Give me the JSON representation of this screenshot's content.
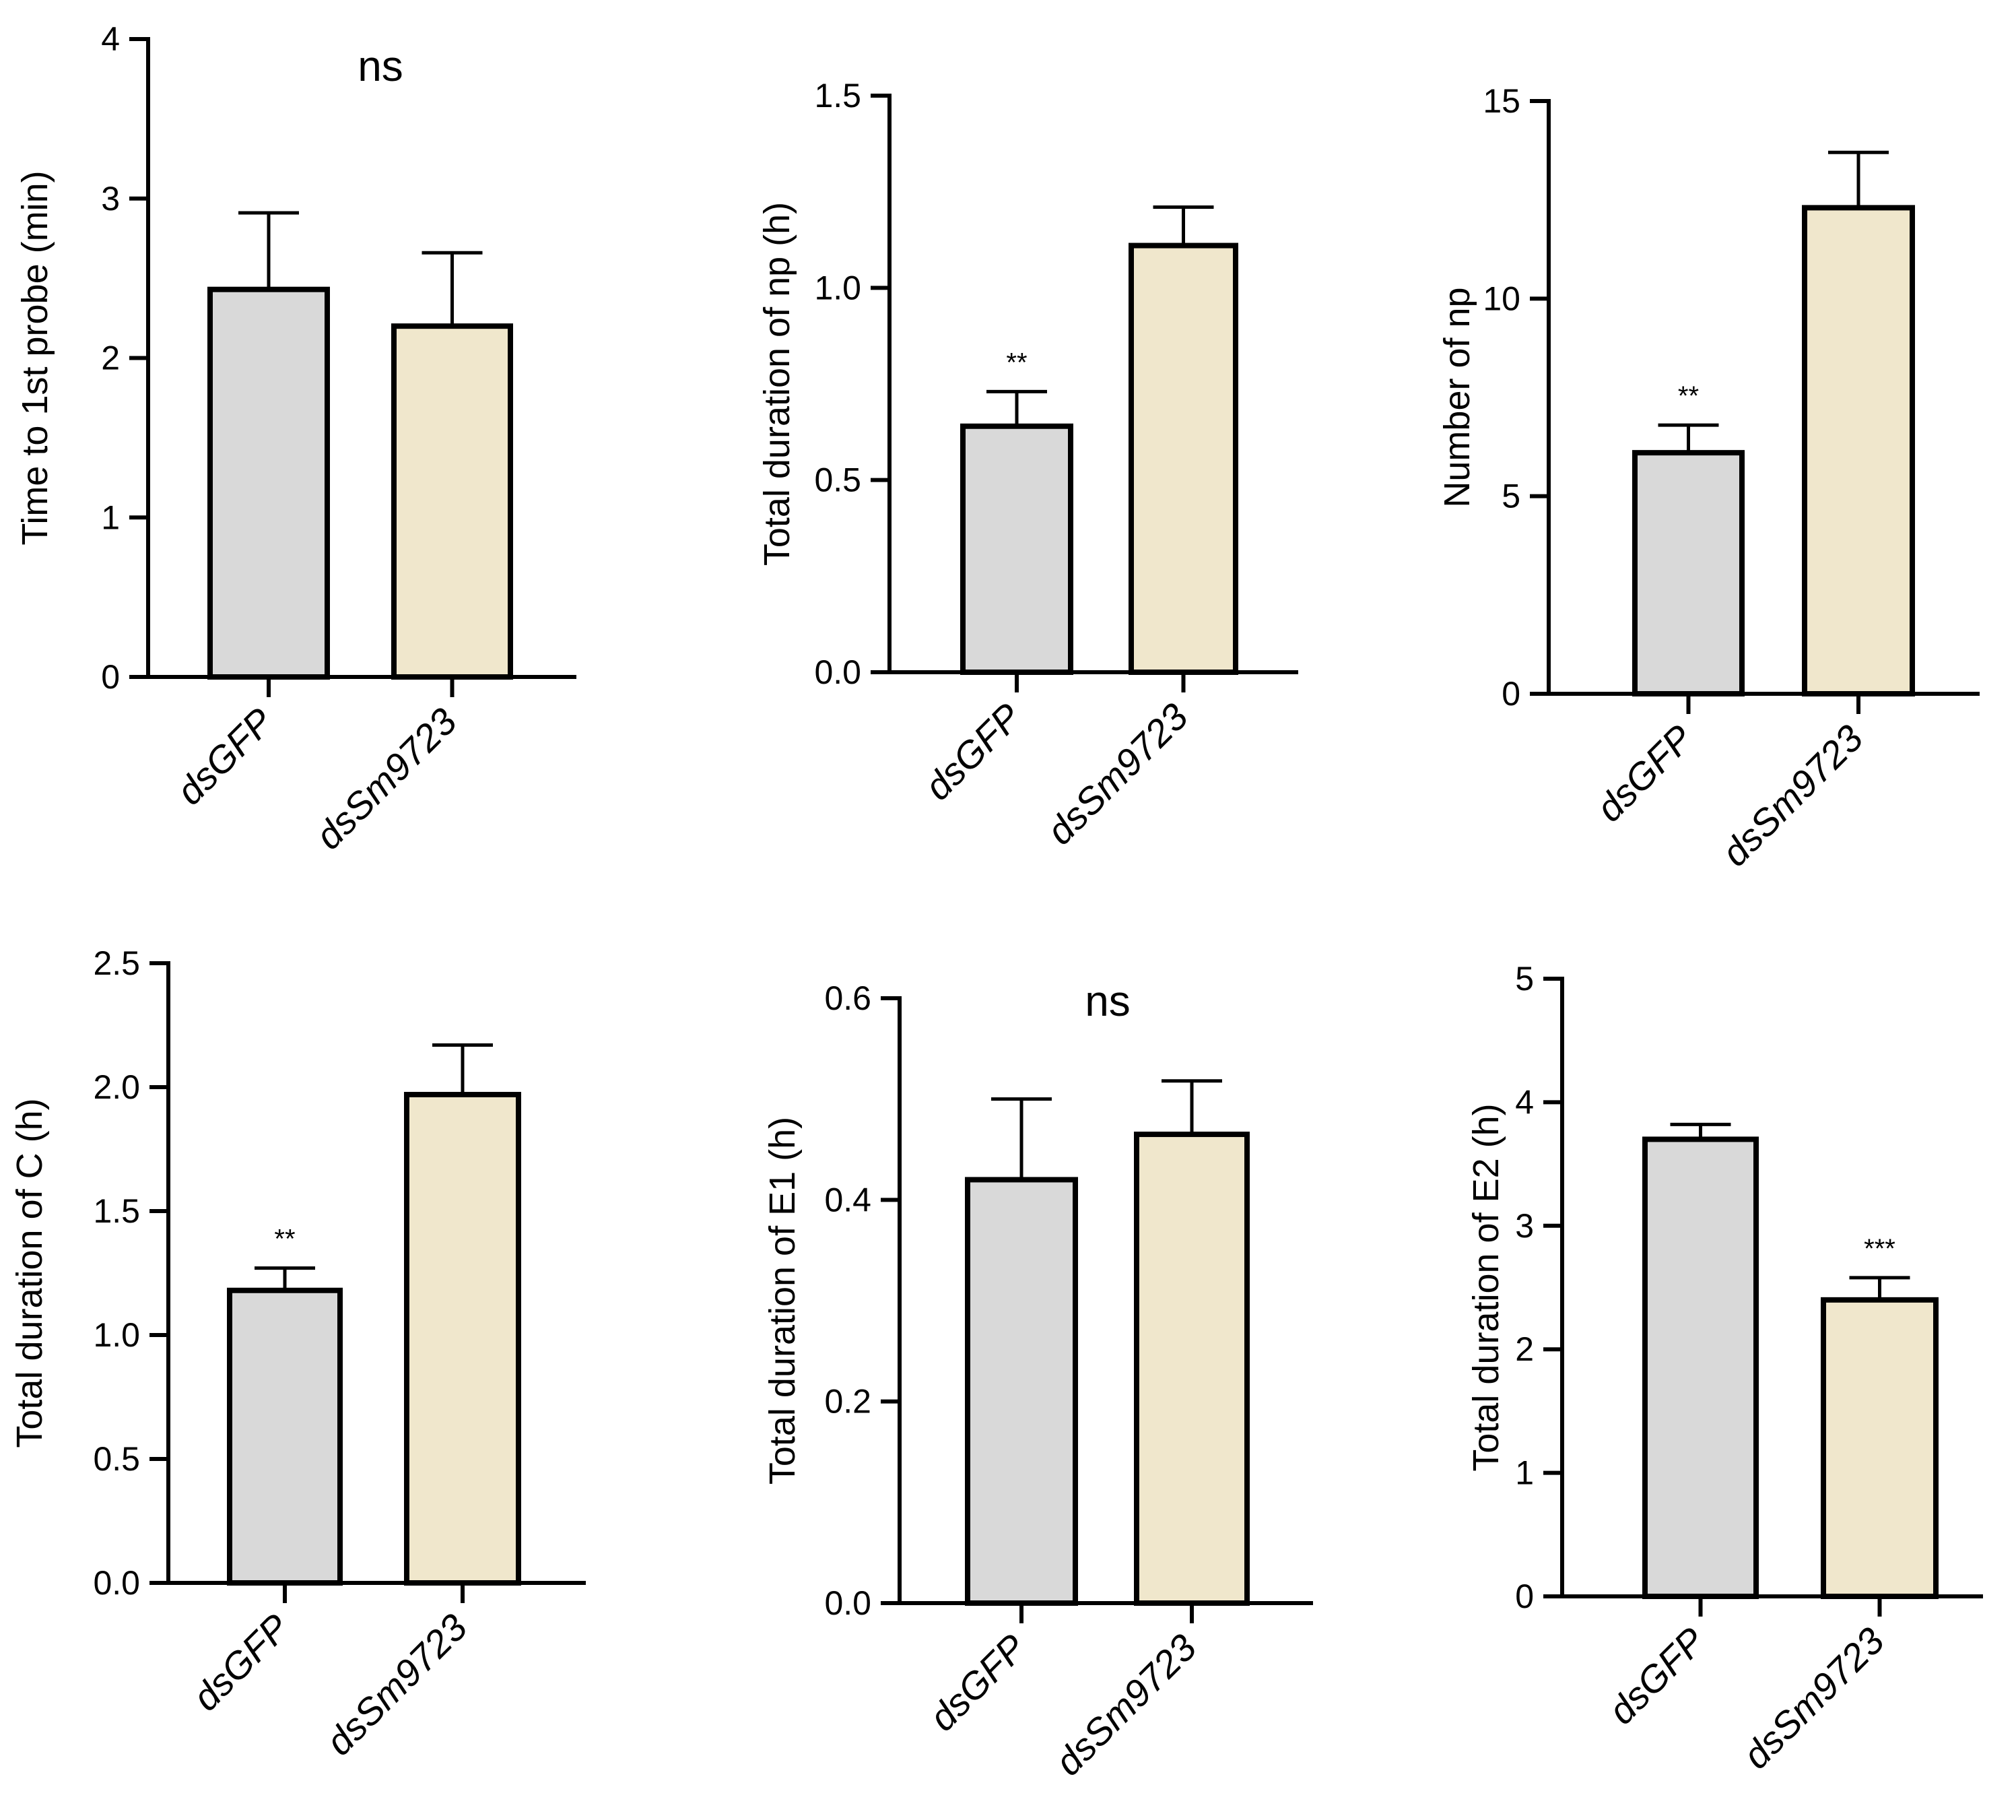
{
  "colors": {
    "dsGFP": "#d9d9d9",
    "dsSm9723": "#f0e7cc"
  },
  "chart_data": [
    {
      "type": "bar",
      "ylabel": "Time to 1st probe (min)",
      "ylim": [
        0,
        4
      ],
      "ytick_labels": [
        "0",
        "1",
        "2",
        "3",
        "4"
      ],
      "categories": [
        "dsGFP",
        "dsSm9723"
      ],
      "values": [
        2.43,
        2.2
      ],
      "errors": [
        0.48,
        0.46
      ],
      "significance": [
        {
          "text": "ns",
          "position": "top-center"
        }
      ]
    },
    {
      "type": "bar",
      "ylabel": "Total duration of np (h)",
      "ylim": [
        0,
        1.5
      ],
      "ytick_labels": [
        "0.0",
        "0.5",
        "1.0",
        "1.5"
      ],
      "categories": [
        "dsGFP",
        "dsSm9723"
      ],
      "values": [
        0.64,
        1.11
      ],
      "errors": [
        0.09,
        0.1
      ],
      "significance": [
        {
          "text": "**",
          "bar": 0
        }
      ]
    },
    {
      "type": "bar",
      "ylabel": "Number of np",
      "ylim": [
        0,
        15
      ],
      "ytick_labels": [
        "0",
        "5",
        "10",
        "15"
      ],
      "categories": [
        "dsGFP",
        "dsSm9723"
      ],
      "values": [
        6.1,
        12.3
      ],
      "errors": [
        0.7,
        1.4
      ],
      "significance": [
        {
          "text": "**",
          "bar": 0
        }
      ]
    },
    {
      "type": "bar",
      "ylabel": "Total duration of C (h)",
      "ylim": [
        0,
        2.5
      ],
      "ytick_labels": [
        "0.0",
        "0.5",
        "1.0",
        "1.5",
        "2.0",
        "2.5"
      ],
      "categories": [
        "dsGFP",
        "dsSm9723"
      ],
      "values": [
        1.18,
        1.97
      ],
      "errors": [
        0.09,
        0.2
      ],
      "significance": [
        {
          "text": "**",
          "bar": 0
        }
      ]
    },
    {
      "type": "bar",
      "ylabel": "Total duration of E1 (h)",
      "ylim": [
        0,
        0.6
      ],
      "ytick_labels": [
        "0.0",
        "0.2",
        "0.4",
        "0.6"
      ],
      "categories": [
        "dsGFP",
        "dsSm9723"
      ],
      "values": [
        0.42,
        0.465
      ],
      "errors": [
        0.08,
        0.053
      ],
      "significance": [
        {
          "text": "ns",
          "position": "top-center"
        }
      ]
    },
    {
      "type": "bar",
      "ylabel": "Total duration of E2 (h)",
      "ylim": [
        0,
        5
      ],
      "ytick_labels": [
        "0",
        "1",
        "2",
        "3",
        "4",
        "5"
      ],
      "categories": [
        "dsGFP",
        "dsSm9723"
      ],
      "values": [
        3.7,
        2.4
      ],
      "errors": [
        0.12,
        0.18
      ],
      "significance": [
        {
          "text": "***",
          "bar": 1
        }
      ]
    }
  ]
}
